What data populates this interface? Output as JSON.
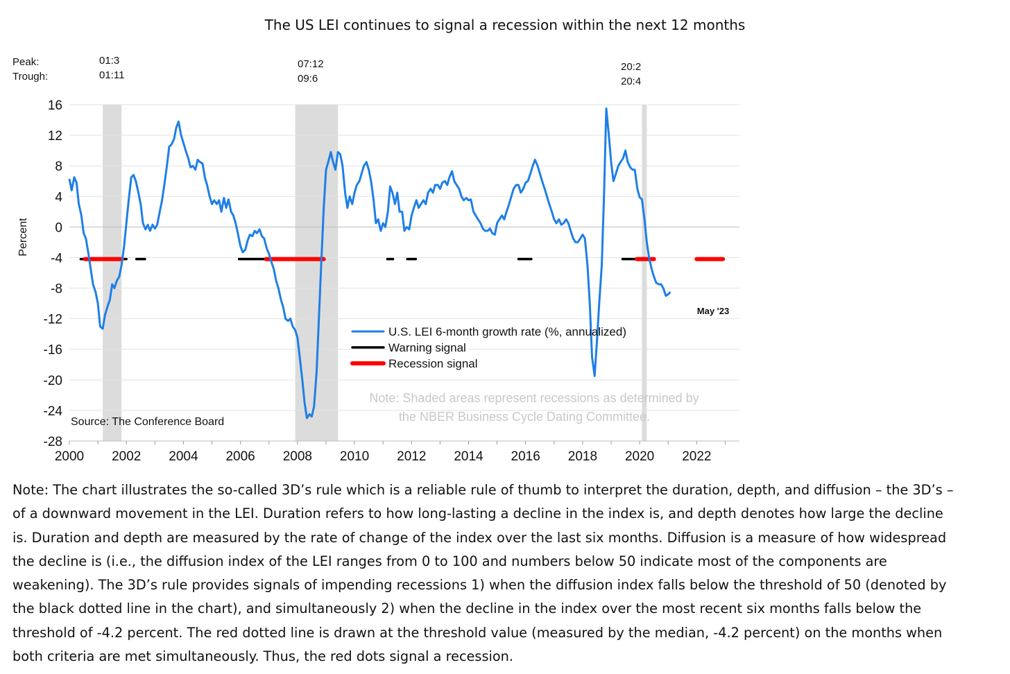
{
  "chart_data": {
    "type": "line",
    "title": "The US LEI continues to signal a recession within the next 12 months",
    "ylabel": "Percent",
    "xlabel": "",
    "ylim": [
      -28,
      16
    ],
    "xlim": [
      2000,
      2023.5
    ],
    "y_ticks": [
      "16",
      "12",
      "8",
      "4",
      "0",
      "-4",
      "-8",
      "-12",
      "-16",
      "-20",
      "-24",
      "-28"
    ],
    "x_ticks": [
      "2000",
      "2002",
      "2004",
      "2006",
      "2008",
      "2010",
      "2012",
      "2014",
      "2016",
      "2018",
      "2020",
      "2022"
    ],
    "grid": "horizontal",
    "legend_position": "center",
    "recession_labels": {
      "row_peak": "Peak:",
      "row_trough": "Trough:",
      "r2001_peak": "01:3",
      "r2001_trough": "01:11",
      "r2007_peak": "07:12",
      "r2007_trough": "09:6",
      "r2020_peak": "20:2",
      "r2020_trough": "20:4"
    },
    "recessions": [
      {
        "start": 2001.17,
        "end": 2001.83
      },
      {
        "start": 2007.92,
        "end": 2009.42
      },
      {
        "start": 2020.08,
        "end": 2020.25
      }
    ],
    "series": [
      {
        "name": "U.S. LEI 6-month growth rate (%, annualized)",
        "color": "#1E7FE6",
        "points": [
          [
            2000.0,
            6.3
          ],
          [
            2000.08,
            4.8
          ],
          [
            2000.17,
            6.5
          ],
          [
            2000.25,
            5.8
          ],
          [
            2000.33,
            3.0
          ],
          [
            2000.42,
            1.5
          ],
          [
            2000.5,
            -0.8
          ],
          [
            2000.58,
            -1.5
          ],
          [
            2000.67,
            -3.5
          ],
          [
            2000.75,
            -5.5
          ],
          [
            2000.83,
            -7.5
          ],
          [
            2000.92,
            -8.5
          ],
          [
            2001.0,
            -10.0
          ],
          [
            2001.08,
            -13.0
          ],
          [
            2001.17,
            -13.3
          ],
          [
            2001.25,
            -11.5
          ],
          [
            2001.33,
            -10.5
          ],
          [
            2001.42,
            -9.5
          ],
          [
            2001.5,
            -7.5
          ],
          [
            2001.58,
            -8.0
          ],
          [
            2001.67,
            -7.0
          ],
          [
            2001.75,
            -6.5
          ],
          [
            2001.83,
            -5.0
          ],
          [
            2001.92,
            -2.5
          ],
          [
            2002.0,
            0.5
          ],
          [
            2002.08,
            3.5
          ],
          [
            2002.17,
            6.5
          ],
          [
            2002.25,
            6.8
          ],
          [
            2002.33,
            6.0
          ],
          [
            2002.42,
            4.5
          ],
          [
            2002.5,
            3.0
          ],
          [
            2002.58,
            0.5
          ],
          [
            2002.67,
            -0.3
          ],
          [
            2002.75,
            0.3
          ],
          [
            2002.83,
            -0.5
          ],
          [
            2002.92,
            0.3
          ],
          [
            2003.0,
            -0.2
          ],
          [
            2003.08,
            0.3
          ],
          [
            2003.17,
            2.0
          ],
          [
            2003.25,
            3.5
          ],
          [
            2003.33,
            5.5
          ],
          [
            2003.42,
            8.0
          ],
          [
            2003.5,
            10.5
          ],
          [
            2003.58,
            10.8
          ],
          [
            2003.67,
            11.5
          ],
          [
            2003.75,
            13.0
          ],
          [
            2003.83,
            13.8
          ],
          [
            2003.92,
            12.0
          ],
          [
            2004.0,
            11.0
          ],
          [
            2004.08,
            10.0
          ],
          [
            2004.17,
            9.0
          ],
          [
            2004.25,
            7.8
          ],
          [
            2004.33,
            8.0
          ],
          [
            2004.42,
            7.5
          ],
          [
            2004.5,
            8.8
          ],
          [
            2004.58,
            8.5
          ],
          [
            2004.67,
            8.3
          ],
          [
            2004.75,
            6.5
          ],
          [
            2004.83,
            5.5
          ],
          [
            2004.92,
            4.0
          ],
          [
            2005.0,
            3.0
          ],
          [
            2005.08,
            3.5
          ],
          [
            2005.17,
            3.0
          ],
          [
            2005.25,
            3.5
          ],
          [
            2005.33,
            2.0
          ],
          [
            2005.42,
            3.8
          ],
          [
            2005.5,
            2.5
          ],
          [
            2005.58,
            3.6
          ],
          [
            2005.67,
            2.0
          ],
          [
            2005.75,
            1.5
          ],
          [
            2005.83,
            0.5
          ],
          [
            2005.92,
            -1.0
          ],
          [
            2006.0,
            -2.5
          ],
          [
            2006.08,
            -3.3
          ],
          [
            2006.17,
            -3.0
          ],
          [
            2006.25,
            -1.8
          ],
          [
            2006.33,
            -1.0
          ],
          [
            2006.42,
            -1.2
          ],
          [
            2006.5,
            -0.5
          ],
          [
            2006.58,
            -0.8
          ],
          [
            2006.67,
            -0.3
          ],
          [
            2006.75,
            -1.2
          ],
          [
            2006.83,
            -1.5
          ],
          [
            2006.92,
            -2.8
          ],
          [
            2007.0,
            -3.5
          ],
          [
            2007.08,
            -4.5
          ],
          [
            2007.17,
            -5.5
          ],
          [
            2007.25,
            -7.0
          ],
          [
            2007.33,
            -8.0
          ],
          [
            2007.42,
            -9.5
          ],
          [
            2007.5,
            -10.5
          ],
          [
            2007.58,
            -12.0
          ],
          [
            2007.67,
            -12.3
          ],
          [
            2007.75,
            -12.0
          ],
          [
            2007.83,
            -13.0
          ],
          [
            2007.92,
            -13.5
          ],
          [
            2008.0,
            -14.5
          ],
          [
            2008.08,
            -17.0
          ],
          [
            2008.17,
            -20.0
          ],
          [
            2008.25,
            -23.0
          ],
          [
            2008.33,
            -25.0
          ],
          [
            2008.42,
            -24.5
          ],
          [
            2008.5,
            -24.8
          ],
          [
            2008.58,
            -23.5
          ],
          [
            2008.67,
            -19.0
          ],
          [
            2008.75,
            -12.0
          ],
          [
            2008.83,
            -5.0
          ],
          [
            2008.92,
            2.5
          ],
          [
            2009.0,
            7.5
          ],
          [
            2009.08,
            8.5
          ],
          [
            2009.17,
            9.8
          ],
          [
            2009.25,
            8.5
          ],
          [
            2009.33,
            7.5
          ],
          [
            2009.42,
            9.8
          ],
          [
            2009.5,
            9.5
          ],
          [
            2009.58,
            8.0
          ],
          [
            2009.67,
            4.5
          ],
          [
            2009.75,
            2.5
          ],
          [
            2009.83,
            4.0
          ],
          [
            2009.92,
            3.0
          ],
          [
            2010.0,
            4.5
          ],
          [
            2010.08,
            5.5
          ],
          [
            2010.17,
            6.0
          ],
          [
            2010.25,
            7.0
          ],
          [
            2010.33,
            8.0
          ],
          [
            2010.42,
            8.5
          ],
          [
            2010.5,
            7.5
          ],
          [
            2010.58,
            6.0
          ],
          [
            2010.67,
            3.5
          ],
          [
            2010.75,
            0.5
          ],
          [
            2010.83,
            1.0
          ],
          [
            2010.92,
            -0.5
          ],
          [
            2011.0,
            0.5
          ],
          [
            2011.08,
            0.0
          ],
          [
            2011.17,
            2.0
          ],
          [
            2011.25,
            5.3
          ],
          [
            2011.33,
            4.5
          ],
          [
            2011.42,
            3.0
          ],
          [
            2011.5,
            4.5
          ],
          [
            2011.58,
            2.0
          ],
          [
            2011.67,
            2.0
          ],
          [
            2011.75,
            -0.5
          ],
          [
            2011.83,
            0.0
          ],
          [
            2011.92,
            -0.3
          ],
          [
            2012.0,
            1.5
          ],
          [
            2012.08,
            2.5
          ],
          [
            2012.17,
            3.5
          ],
          [
            2012.25,
            2.5
          ],
          [
            2012.33,
            3.0
          ],
          [
            2012.42,
            3.5
          ],
          [
            2012.5,
            3.0
          ],
          [
            2012.58,
            4.5
          ],
          [
            2012.67,
            5.0
          ],
          [
            2012.75,
            4.5
          ],
          [
            2012.83,
            5.5
          ],
          [
            2012.92,
            5.5
          ],
          [
            2013.0,
            5.0
          ],
          [
            2013.08,
            5.8
          ],
          [
            2013.17,
            6.0
          ],
          [
            2013.25,
            5.5
          ],
          [
            2013.33,
            6.5
          ],
          [
            2013.42,
            7.3
          ],
          [
            2013.5,
            6.0
          ],
          [
            2013.58,
            5.5
          ],
          [
            2013.67,
            5.0
          ],
          [
            2013.75,
            4.0
          ],
          [
            2013.83,
            3.5
          ],
          [
            2013.92,
            3.8
          ],
          [
            2014.0,
            3.5
          ],
          [
            2014.08,
            3.6
          ],
          [
            2014.17,
            2.0
          ],
          [
            2014.25,
            1.5
          ],
          [
            2014.33,
            1.0
          ],
          [
            2014.42,
            0.5
          ],
          [
            2014.5,
            -0.2
          ],
          [
            2014.58,
            -0.5
          ],
          [
            2014.67,
            -0.5
          ],
          [
            2014.75,
            -0.2
          ],
          [
            2014.83,
            -0.8
          ],
          [
            2014.92,
            -1.0
          ],
          [
            2015.0,
            0.5
          ],
          [
            2015.08,
            1.0
          ],
          [
            2015.17,
            1.5
          ],
          [
            2015.25,
            1.0
          ],
          [
            2015.33,
            2.0
          ],
          [
            2015.42,
            3.0
          ],
          [
            2015.5,
            4.0
          ],
          [
            2015.58,
            5.0
          ],
          [
            2015.67,
            5.5
          ],
          [
            2015.75,
            5.5
          ],
          [
            2015.83,
            4.5
          ],
          [
            2015.92,
            5.0
          ],
          [
            2016.0,
            5.8
          ],
          [
            2016.08,
            6.0
          ],
          [
            2016.17,
            7.0
          ],
          [
            2016.25,
            8.0
          ],
          [
            2016.33,
            8.8
          ],
          [
            2016.42,
            8.0
          ],
          [
            2016.5,
            7.0
          ],
          [
            2016.58,
            6.0
          ],
          [
            2016.67,
            5.0
          ],
          [
            2016.75,
            4.0
          ],
          [
            2016.83,
            3.0
          ],
          [
            2016.92,
            2.0
          ],
          [
            2017.0,
            1.0
          ],
          [
            2017.08,
            0.5
          ],
          [
            2017.17,
            1.0
          ],
          [
            2017.25,
            0.3
          ],
          [
            2017.33,
            0.5
          ],
          [
            2017.42,
            1.0
          ],
          [
            2017.5,
            0.5
          ],
          [
            2017.58,
            -0.5
          ],
          [
            2017.67,
            -1.5
          ],
          [
            2017.75,
            -2.0
          ],
          [
            2017.83,
            -2.0
          ],
          [
            2017.92,
            -1.5
          ],
          [
            2018.0,
            -1.0
          ],
          [
            2018.08,
            -1.5
          ],
          [
            2018.17,
            -5.0
          ],
          [
            2018.25,
            -10.0
          ],
          [
            2018.33,
            -17.0
          ],
          [
            2018.42,
            -19.5
          ],
          [
            2018.5,
            -15.0
          ],
          [
            2018.58,
            -10.0
          ],
          [
            2018.67,
            -5.0
          ],
          [
            2018.75,
            4.0
          ],
          [
            2018.83,
            15.5
          ],
          [
            2018.92,
            12.0
          ],
          [
            2019.0,
            8.5
          ],
          [
            2019.08,
            6.0
          ],
          [
            2019.17,
            7.0
          ],
          [
            2019.25,
            8.0
          ],
          [
            2019.33,
            8.5
          ],
          [
            2019.42,
            9.0
          ],
          [
            2019.5,
            10.0
          ],
          [
            2019.58,
            8.5
          ],
          [
            2019.67,
            7.8
          ],
          [
            2019.75,
            7.5
          ],
          [
            2019.83,
            7.5
          ],
          [
            2019.92,
            5.0
          ],
          [
            2020.0,
            3.9
          ],
          [
            2020.08,
            3.6
          ],
          [
            2020.17,
            1.0
          ],
          [
            2020.25,
            -2.0
          ],
          [
            2020.33,
            -4.0
          ],
          [
            2020.42,
            -5.5
          ],
          [
            2020.5,
            -6.5
          ],
          [
            2020.58,
            -7.3
          ],
          [
            2020.67,
            -7.5
          ],
          [
            2020.75,
            -7.5
          ],
          [
            2020.83,
            -8.0
          ],
          [
            2020.92,
            -9.0
          ],
          [
            2021.0,
            -8.8
          ],
          [
            2021.08,
            -8.5
          ]
        ]
      },
      {
        "name": "Warning signal",
        "color": "#000000",
        "y": -4.2,
        "segments": [
          [
            2000.4,
            2000.55
          ],
          [
            2001.85,
            2002.0
          ],
          [
            2002.35,
            2002.65
          ],
          [
            2005.95,
            2006.9
          ],
          [
            2011.15,
            2011.35
          ],
          [
            2011.85,
            2012.15
          ],
          [
            2015.75,
            2016.2
          ],
          [
            2019.4,
            2019.9
          ]
        ]
      },
      {
        "name": "Recession signal",
        "color": "#FF0000",
        "y": -4.2,
        "segments": [
          [
            2000.55,
            2001.85
          ],
          [
            2006.9,
            2008.92
          ],
          [
            2019.9,
            2020.5
          ],
          [
            2022.0,
            2022.92
          ]
        ]
      }
    ],
    "annotations": {
      "end_label": "May '23",
      "source": "Source: The Conference Board",
      "shade_note_line1": "Note: Shaded areas represent recessions as determined by",
      "shade_note_line2": "the NBER Business Cycle Dating Committee."
    }
  },
  "note": {
    "lines": [
      "Note: The chart illustrates the so-called 3D’s rule which is a reliable rule of thumb to interpret the duration, depth, and diffusion – the 3D’s –",
      "of a downward movement in the LEI. Duration refers to how long-lasting a decline in the index is, and depth denotes how large the decline",
      "is. Duration and depth are measured by the rate of change of the index over the last six months. Diffusion is a measure of how widespread",
      "the decline is (i.e., the diffusion index of the LEI ranges from 0 to 100 and numbers below 50 indicate most of the components are",
      "weakening). The 3D’s rule provides signals of impending recessions 1) when the diffusion index falls below the threshold of 50 (denoted by",
      "the black dotted line in the chart), and simultaneously 2) when the decline in the index over the most recent six months falls below the",
      "threshold of -4.2 percent. The red dotted line is drawn at the threshold value (measured by the median, -4.2 percent) on the months when",
      "both criteria are met simultaneously. Thus, the red dots signal a recession."
    ]
  }
}
